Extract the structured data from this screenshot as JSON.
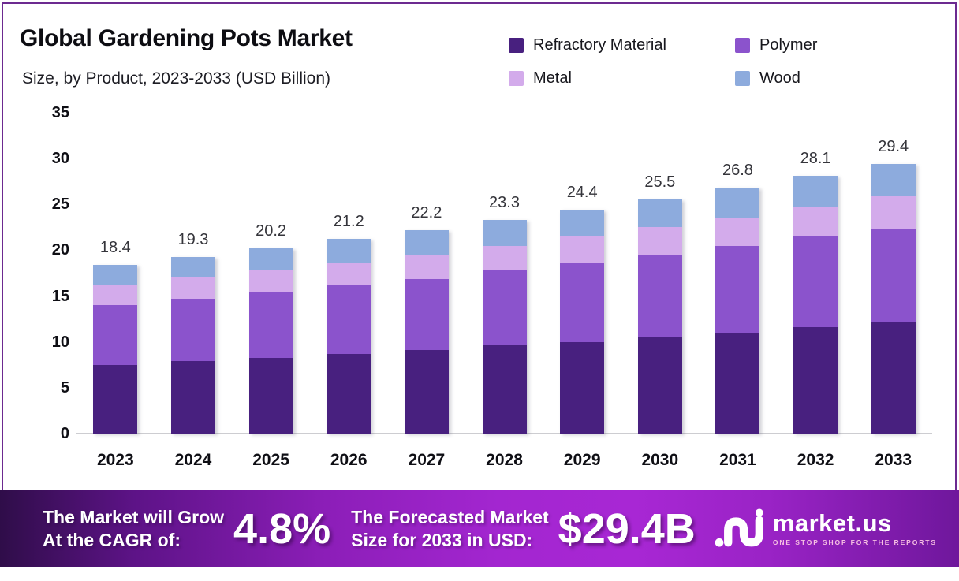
{
  "header": {
    "title": "Global Gardening Pots Market",
    "subtitle": "Size, by Product, 2023-2033 (USD Billion)"
  },
  "legend": [
    {
      "label": "Refractory Material",
      "color": "#48207f"
    },
    {
      "label": "Polymer",
      "color": "#8b53cc"
    },
    {
      "label": "Metal",
      "color": "#d3abeb"
    },
    {
      "label": "Wood",
      "color": "#8dabdd"
    }
  ],
  "chart_data": {
    "type": "bar",
    "stacked": true,
    "title": "Global Gardening Pots Market Size, by Product, 2023-2033 (USD Billion)",
    "categories": [
      "2023",
      "2024",
      "2025",
      "2026",
      "2027",
      "2028",
      "2029",
      "2030",
      "2031",
      "2032",
      "2033"
    ],
    "series": [
      {
        "name": "Refractory Material",
        "color": "#48207f",
        "values": [
          7.5,
          7.9,
          8.3,
          8.7,
          9.1,
          9.6,
          10.0,
          10.5,
          11.0,
          11.6,
          12.2
        ]
      },
      {
        "name": "Polymer",
        "color": "#8b53cc",
        "values": [
          6.5,
          6.8,
          7.1,
          7.5,
          7.8,
          8.2,
          8.6,
          9.0,
          9.5,
          9.9,
          10.2
        ]
      },
      {
        "name": "Metal",
        "color": "#d3abeb",
        "values": [
          2.2,
          2.3,
          2.4,
          2.5,
          2.6,
          2.7,
          2.9,
          3.0,
          3.1,
          3.2,
          3.5
        ]
      },
      {
        "name": "Wood",
        "color": "#8dabdd",
        "values": [
          2.2,
          2.3,
          2.4,
          2.5,
          2.7,
          2.8,
          2.9,
          3.0,
          3.2,
          3.4,
          3.5
        ]
      }
    ],
    "totals": [
      18.4,
      19.3,
      20.2,
      21.2,
      22.2,
      23.3,
      24.4,
      25.5,
      26.8,
      28.1,
      29.4
    ],
    "xlabel": "",
    "ylabel": "",
    "ylim": [
      0,
      35
    ],
    "yticks": [
      0,
      5,
      10,
      15,
      20,
      25,
      30,
      35
    ],
    "grid": false,
    "legend_position": "top-right"
  },
  "banner": {
    "cagr_label_line1": "The Market will Grow",
    "cagr_label_line2": "At the CAGR of:",
    "cagr_value": "4.8%",
    "forecast_label_line1": "The Forecasted Market",
    "forecast_label_line2": "Size for 2033 in USD:",
    "forecast_value": "$29.4B",
    "logo_text": "market.us",
    "logo_tagline": "ONE STOP SHOP FOR THE REPORTS"
  },
  "colors": {
    "frame_border": "#6c2a90",
    "axis_baseline": "#cdcdd1",
    "banner_gradient_dark": "#2f0d49",
    "banner_gradient_bright": "#a827d4",
    "text_dark": "#0e0e14",
    "banner_text": "#ffffff",
    "logo_tagline_pink": "#f6bfe2"
  }
}
